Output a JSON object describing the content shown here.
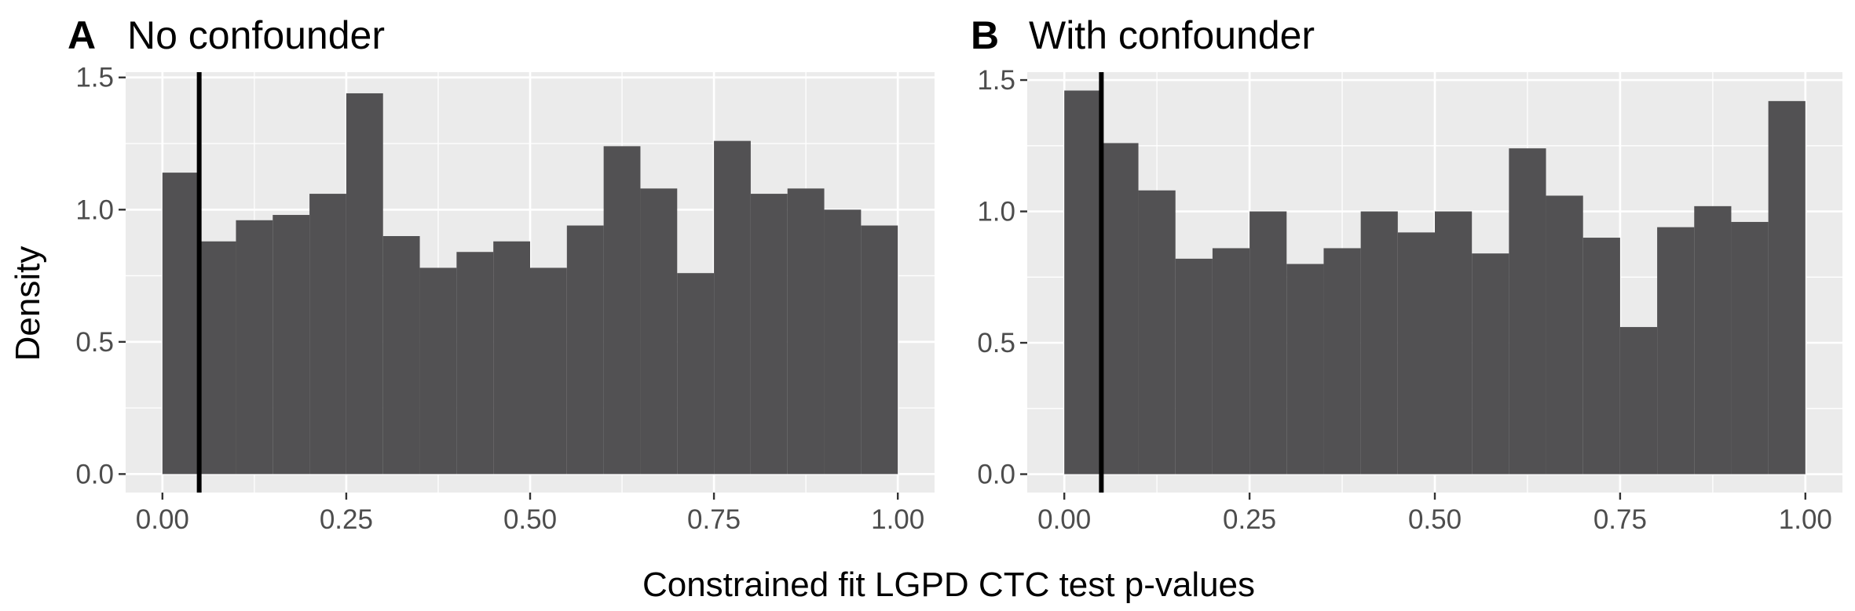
{
  "figure": {
    "ylabel": "Density",
    "xlabel": "Constrained fit LGPD CTC test p-values"
  },
  "colors": {
    "panel_background": "#ebebeb",
    "grid_line": "#ffffff",
    "bar_fill": "#525153",
    "reference_line": "#000000",
    "tick_text": "#4d4d4d"
  },
  "chart_data": [
    {
      "type": "bar",
      "panel": "A",
      "title": "No confounder",
      "bin_width": 0.05,
      "bin_starts": [
        0.0,
        0.05,
        0.1,
        0.15,
        0.2,
        0.25,
        0.3,
        0.35,
        0.4,
        0.45,
        0.5,
        0.55,
        0.6,
        0.65,
        0.7,
        0.75,
        0.8,
        0.85,
        0.9,
        0.95
      ],
      "values": [
        1.14,
        0.88,
        0.96,
        0.98,
        1.06,
        1.44,
        0.9,
        0.78,
        0.84,
        0.88,
        0.78,
        0.94,
        1.24,
        1.08,
        0.76,
        1.26,
        1.06,
        1.08,
        1.0,
        0.94
      ],
      "reference_x": 0.05,
      "xlim": [
        -0.05,
        1.05
      ],
      "ylim": [
        -0.07,
        1.52
      ],
      "x_ticks": [
        "0.00",
        "0.25",
        "0.50",
        "0.75",
        "1.00"
      ],
      "y_ticks": [
        "0.0",
        "0.5",
        "1.0",
        "1.5"
      ],
      "grid": true
    },
    {
      "type": "bar",
      "panel": "B",
      "title": "With confounder",
      "bin_width": 0.05,
      "bin_starts": [
        0.0,
        0.05,
        0.1,
        0.15,
        0.2,
        0.25,
        0.3,
        0.35,
        0.4,
        0.45,
        0.5,
        0.55,
        0.6,
        0.65,
        0.7,
        0.75,
        0.8,
        0.85,
        0.9,
        0.95
      ],
      "values": [
        1.46,
        1.26,
        1.08,
        0.82,
        0.86,
        1.0,
        0.8,
        0.86,
        1.0,
        0.92,
        1.0,
        0.84,
        1.24,
        1.06,
        0.9,
        0.56,
        0.94,
        1.02,
        0.96,
        1.42
      ],
      "reference_x": 0.05,
      "xlim": [
        -0.05,
        1.05
      ],
      "ylim": [
        -0.07,
        1.53
      ],
      "x_ticks": [
        "0.00",
        "0.25",
        "0.50",
        "0.75",
        "1.00"
      ],
      "y_ticks": [
        "0.0",
        "0.5",
        "1.0",
        "1.5"
      ],
      "grid": true
    }
  ]
}
